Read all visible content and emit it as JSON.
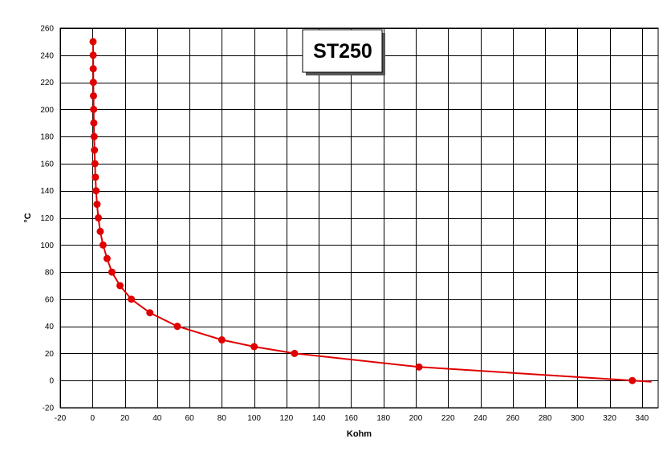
{
  "chart_data": {
    "type": "scatter",
    "title": "ST250",
    "xlabel": "Kohm",
    "ylabel": "°C",
    "xlim": [
      -20,
      350
    ],
    "ylim": [
      -20,
      260
    ],
    "x_ticks": [
      -20,
      0,
      20,
      40,
      60,
      80,
      100,
      120,
      140,
      160,
      180,
      200,
      220,
      240,
      260,
      280,
      300,
      320,
      340
    ],
    "y_ticks": [
      -20,
      0,
      20,
      40,
      60,
      80,
      100,
      120,
      140,
      160,
      180,
      200,
      220,
      240,
      260
    ],
    "grid": true,
    "line_color": "#e00000",
    "marker_color": "#e00000",
    "series": [
      {
        "points": [
          {
            "x": 334,
            "y": 0
          },
          {
            "x": 202,
            "y": 10
          },
          {
            "x": 125,
            "y": 20
          },
          {
            "x": 100,
            "y": 25
          },
          {
            "x": 80,
            "y": 30
          },
          {
            "x": 52.5,
            "y": 40
          },
          {
            "x": 35.5,
            "y": 50
          },
          {
            "x": 24,
            "y": 60
          },
          {
            "x": 17,
            "y": 70
          },
          {
            "x": 12,
            "y": 80
          },
          {
            "x": 9,
            "y": 90
          },
          {
            "x": 6.5,
            "y": 100
          },
          {
            "x": 4.8,
            "y": 110
          },
          {
            "x": 3.6,
            "y": 120
          },
          {
            "x": 2.8,
            "y": 130
          },
          {
            "x": 2.2,
            "y": 140
          },
          {
            "x": 1.8,
            "y": 150
          },
          {
            "x": 1.5,
            "y": 160
          },
          {
            "x": 1.2,
            "y": 170
          },
          {
            "x": 1.0,
            "y": 180
          },
          {
            "x": 0.8,
            "y": 190
          },
          {
            "x": 0.7,
            "y": 200
          },
          {
            "x": 0.6,
            "y": 210
          },
          {
            "x": 0.5,
            "y": 220
          },
          {
            "x": 0.45,
            "y": 230
          },
          {
            "x": 0.4,
            "y": 240
          },
          {
            "x": 0.35,
            "y": 250
          }
        ]
      }
    ]
  }
}
